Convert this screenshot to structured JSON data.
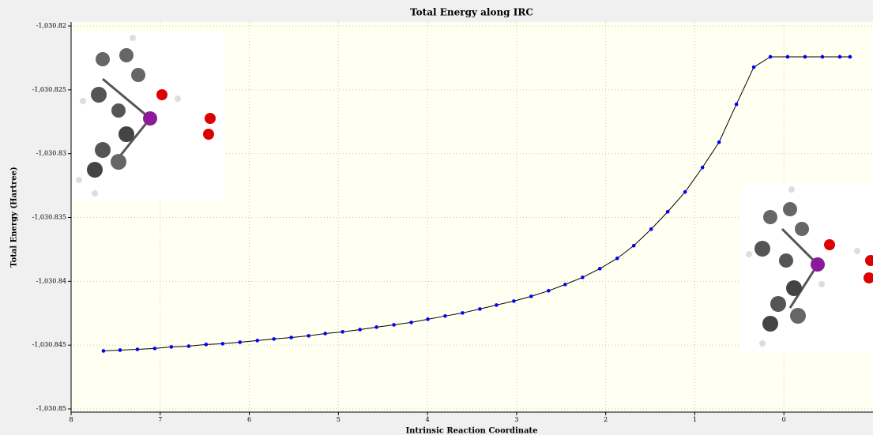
{
  "chart_data": {
    "type": "line",
    "title": "Total Energy along IRC",
    "x_label": "Intrinsic Reaction Coordinate",
    "y_label": "Total Energy (Hartree)",
    "xlim": [
      8,
      -1
    ],
    "xticks": [
      8,
      7,
      6,
      5,
      4,
      3,
      2,
      1,
      0
    ],
    "ylim": [
      -1030.85,
      -1030.82
    ],
    "yticks": [
      {
        "value": -1030.82,
        "label": "-1,030.82"
      },
      {
        "value": -1030.825,
        "label": "-1,030.825"
      },
      {
        "value": -1030.83,
        "label": "-1,030.83"
      },
      {
        "value": -1030.835,
        "label": "-1,030.835"
      },
      {
        "value": -1030.84,
        "label": "-1,030.84"
      },
      {
        "value": -1030.845,
        "label": "-1,030.845"
      },
      {
        "value": -1030.85,
        "label": "-1,030.85"
      }
    ],
    "grid": true,
    "series": [
      {
        "color": "#0000ff",
        "line_color": "#000000",
        "x": [
          7.637,
          7.451,
          7.256,
          7.061,
          6.875,
          6.68,
          6.485,
          6.299,
          6.105,
          5.91,
          5.724,
          5.529,
          5.334,
          5.148,
          4.953,
          4.758,
          4.572,
          4.377,
          4.182,
          3.996,
          3.802,
          3.607,
          3.412,
          3.226,
          3.031,
          2.836,
          2.641,
          2.455,
          2.26,
          2.066,
          1.871,
          1.685,
          1.49,
          1.304,
          1.109,
          0.914,
          0.728,
          0.533,
          0.338,
          0.152,
          -0.042,
          -0.237,
          -0.432,
          -0.627,
          -0.742
        ],
        "values": [
          -1030.84545,
          -1030.84539,
          -1030.84533,
          -1030.84526,
          -1030.84514,
          -1030.84508,
          -1030.84495,
          -1030.84489,
          -1030.84477,
          -1030.84464,
          -1030.84452,
          -1030.8444,
          -1030.84427,
          -1030.84409,
          -1030.84396,
          -1030.84378,
          -1030.84359,
          -1030.84341,
          -1030.84322,
          -1030.84297,
          -1030.84272,
          -1030.84248,
          -1030.84217,
          -1030.84186,
          -1030.84155,
          -1030.84118,
          -1030.84074,
          -1030.84025,
          -1030.83969,
          -1030.83901,
          -1030.8382,
          -1030.83721,
          -1030.83591,
          -1030.83455,
          -1030.833,
          -1030.83108,
          -1030.8291,
          -1030.82613,
          -1030.82322,
          -1030.82241,
          -1030.82241,
          -1030.82241,
          -1030.82241,
          -1030.82241,
          -1030.82241
        ]
      }
    ]
  }
}
